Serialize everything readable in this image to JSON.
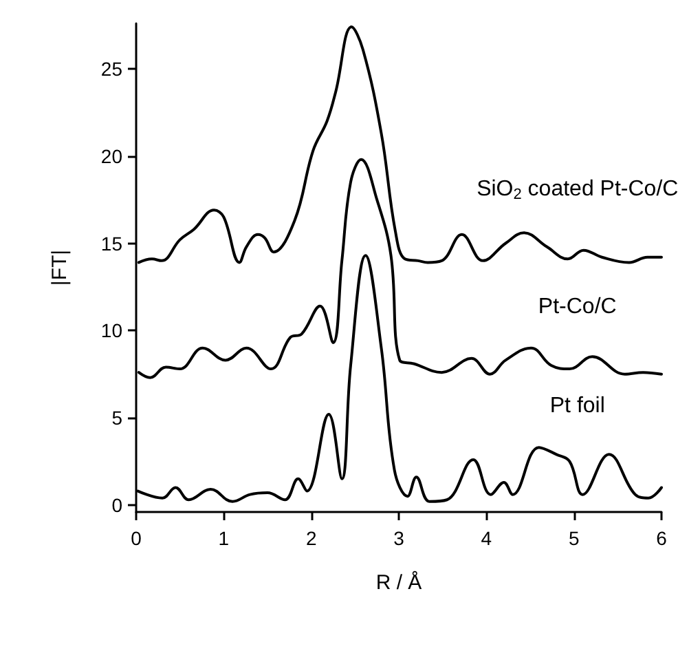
{
  "chart_data": {
    "type": "line",
    "xlabel": "R / Å",
    "ylabel": "|FT|",
    "xlim": [
      0,
      6
    ],
    "xticks": [
      0,
      1,
      2,
      3,
      4,
      5,
      6
    ],
    "ylim": [
      -0.4,
      27.6
    ],
    "yticks": [
      0,
      5,
      10,
      15,
      20,
      25
    ],
    "grid": false,
    "legend": false,
    "marker": "none",
    "line_style": "solid",
    "series": [
      {
        "name": "SiO$_{2}$ coated Pt-Co/C",
        "color": "#000000",
        "x": [
          0.03,
          0.18,
          0.29,
          0.5,
          0.66,
          0.89,
          1.0,
          1.18,
          1.26,
          1.39,
          1.47,
          1.57,
          1.81,
          2.02,
          2.18,
          2.28,
          2.46,
          2.59,
          2.8,
          2.96,
          3.07,
          3.22,
          3.33,
          3.49,
          3.72,
          3.96,
          4.22,
          4.43,
          4.69,
          4.93,
          5.11,
          5.32,
          5.63,
          5.84,
          6.0
        ],
        "values": [
          13.9,
          14.1,
          14.0,
          15.2,
          15.8,
          16.9,
          16.5,
          13.9,
          14.8,
          15.5,
          15.3,
          14.5,
          16.3,
          20.3,
          22.0,
          23.7,
          27.4,
          26.1,
          21.3,
          15.7,
          14.1,
          14.0,
          13.9,
          14.0,
          15.5,
          14.0,
          15.0,
          15.6,
          14.8,
          14.1,
          14.6,
          14.2,
          13.9,
          14.2,
          14.2
        ]
      },
      {
        "name": "Pt-Co/C",
        "color": "#000000",
        "x": [
          0.03,
          0.16,
          0.34,
          0.5,
          0.76,
          1.02,
          1.26,
          1.54,
          1.76,
          1.89,
          2.1,
          2.25,
          2.35,
          2.45,
          2.57,
          2.75,
          2.91,
          3.01,
          3.17,
          3.49,
          3.83,
          4.04,
          4.22,
          4.51,
          4.74,
          4.95,
          5.21,
          5.58,
          5.79,
          6.0
        ],
        "values": [
          7.6,
          7.3,
          7.9,
          7.8,
          9.0,
          8.3,
          9.0,
          7.8,
          9.6,
          9.8,
          11.4,
          9.3,
          14.0,
          18.5,
          19.8,
          17.5,
          14.3,
          8.3,
          8.1,
          7.6,
          8.4,
          7.5,
          8.3,
          9.0,
          8.0,
          7.8,
          8.5,
          7.5,
          7.6,
          7.5
        ]
      },
      {
        "name": "Pt foil",
        "color": "#000000",
        "x": [
          0.02,
          0.3,
          0.45,
          0.6,
          0.85,
          1.1,
          1.3,
          1.5,
          1.7,
          1.85,
          1.95,
          2.2,
          2.35,
          2.45,
          2.62,
          2.8,
          2.95,
          3.1,
          3.2,
          3.35,
          3.55,
          3.85,
          4.05,
          4.2,
          4.3,
          4.6,
          4.8,
          4.95,
          5.1,
          5.4,
          5.7,
          5.85,
          6.0
        ],
        "values": [
          0.8,
          0.4,
          1.0,
          0.3,
          0.9,
          0.2,
          0.6,
          0.7,
          0.3,
          1.5,
          0.8,
          5.2,
          1.5,
          8.0,
          14.3,
          9.0,
          2.0,
          0.5,
          1.6,
          0.2,
          0.3,
          2.6,
          0.6,
          1.3,
          0.6,
          3.3,
          2.9,
          2.5,
          0.6,
          2.9,
          0.6,
          0.4,
          1.0
        ]
      }
    ]
  }
}
